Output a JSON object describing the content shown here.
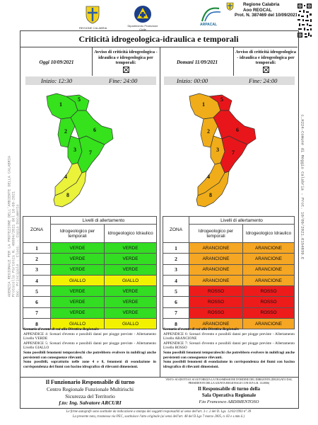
{
  "header": {
    "logos": [
      {
        "name": "regione-calabria-crest",
        "caption": "REGIONE CALABRIA"
      },
      {
        "name": "protezione-civile-logo",
        "caption": "Dipartimento Protezione Civile"
      },
      {
        "name": "arpacal-logo",
        "caption": "ARPACAL"
      }
    ],
    "stamp": [
      "Regione Calabria",
      "Aoo REGCAL",
      "Prot. N. 387469 del 10/09/2021"
    ],
    "vertical_left": [
      "AGENZIA REGIONALE PER LA PROTEZIONE DELL'AMBIENTE DELLA CALABRIA",
      "Protocollo Partenza N. 40094/2021 del 10-09-2021",
      "Doc. Principale - Class. - Copia Documento"
    ],
    "vertical_right": "c_H224-Comune di Reggio Calabria - Prot. 10/09/2021.0154839.E"
  },
  "title": "Criticità idrogeologica-idraulica e temporali",
  "panels": [
    {
      "day": "Oggi 10/09/2021",
      "avviso": "Avviso di criticità idrogeologica - idraulica e idrogeologica per temporali:",
      "inizio": "Inizio: 12:30",
      "fine": "Fine: 24:00",
      "zone_colors": [
        "#35e21c",
        "#35e21c",
        "#35e21c",
        "#eaf23a",
        "#35e21c",
        "#35e21c",
        "#35e21c",
        "#eaf23a"
      ],
      "table": {
        "group_header": "Livelli di allertamento",
        "zona_header": "ZONA",
        "col1_header": "Idrogeologico per temporali",
        "col2_header": "Idrogeologico Idraulico",
        "rows": [
          {
            "zona": "1",
            "a": "VERDE",
            "b": "VERDE",
            "ca": "#33dd22",
            "cb": "#33dd22"
          },
          {
            "zona": "2",
            "a": "VERDE",
            "b": "VERDE",
            "ca": "#33dd22",
            "cb": "#33dd22"
          },
          {
            "zona": "3",
            "a": "VERDE",
            "b": "VERDE",
            "ca": "#33dd22",
            "cb": "#33dd22"
          },
          {
            "zona": "4",
            "a": "GIALLO",
            "b": "GIALLO",
            "ca": "#f2f200",
            "cb": "#f2f200"
          },
          {
            "zona": "5",
            "a": "VERDE",
            "b": "VERDE",
            "ca": "#33dd22",
            "cb": "#33dd22"
          },
          {
            "zona": "6",
            "a": "VERDE",
            "b": "VERDE",
            "ca": "#33dd22",
            "cb": "#33dd22"
          },
          {
            "zona": "7",
            "a": "VERDE",
            "b": "VERDE",
            "ca": "#33dd22",
            "cb": "#33dd22"
          },
          {
            "zona": "8",
            "a": "GIALLO",
            "b": "GIALLO",
            "ca": "#f2f200",
            "cb": "#f2f200"
          }
        ]
      },
      "notes": {
        "heading": "Scenario d'evento di cui alla Direttiva Regionale:",
        "p1": "APPENDICE 4: Scenari d'evento e possibili danni per piogge previste - Allertamento Livello VERDE",
        "p2": "APPENDICE 5: Scenari d'evento e possibili danni per piogge previste - Allertamento Livello GIALLO",
        "p3": "Sono possibili fenomeni temporaleschi che potrebbero evolvere in nubifragi anche persistenti con conseguenze rilevanti.",
        "p4": "Sono possibili, soprattutto nelle zone 4 e 8, fenomeni di esondazione in corrispondenza dei fiumi con bacino idrografico di rilevanti dimensioni."
      }
    },
    {
      "day": "Domani 11/09/2021",
      "avviso": "Avviso di criticità idrogeologica - idraulica e idrogeologica per temporali:",
      "inizio": "Inizio: 00:00",
      "fine": "Fine: 24:00",
      "zone_colors": [
        "#f0ad19",
        "#f0ad19",
        "#f0ad19",
        "#f0ad19",
        "#e8161a",
        "#e8161a",
        "#e8161a",
        "#f0ad19"
      ],
      "table": {
        "group_header": "Livelli di allertamento",
        "zona_header": "ZONA",
        "col1_header": "Idrogeologico per temporali",
        "col2_header": "Idrogeologico Idraulico",
        "rows": [
          {
            "zona": "1",
            "a": "ARANCIONE",
            "b": "ARANCIONE",
            "ca": "#f5a623",
            "cb": "#f5a623"
          },
          {
            "zona": "2",
            "a": "ARANCIONE",
            "b": "ARANCIONE",
            "ca": "#f5a623",
            "cb": "#f5a623"
          },
          {
            "zona": "3",
            "a": "ARANCIONE",
            "b": "ARANCIONE",
            "ca": "#f5a623",
            "cb": "#f5a623"
          },
          {
            "zona": "4",
            "a": "ARANCIONE",
            "b": "ARANCIONE",
            "ca": "#f5a623",
            "cb": "#f5a623"
          },
          {
            "zona": "5",
            "a": "ROSSO",
            "b": "ROSSO",
            "ca": "#ee1b1b",
            "cb": "#ee1b1b"
          },
          {
            "zona": "6",
            "a": "ROSSO",
            "b": "ROSSO",
            "ca": "#ee1b1b",
            "cb": "#ee1b1b"
          },
          {
            "zona": "7",
            "a": "ROSSO",
            "b": "ROSSO",
            "ca": "#ee1b1b",
            "cb": "#ee1b1b"
          },
          {
            "zona": "8",
            "a": "ARANCIONE",
            "b": "ARANCIONE",
            "ca": "#f5a623",
            "cb": "#f5a623"
          }
        ]
      },
      "notes": {
        "heading": "Scenario d'evento di cui alla Direttiva Regionale:",
        "p1": "APPENDICE 6: Scenari d'evento e possibili danni per piogge previste - Allertamento Livello ARANCIONE",
        "p2": "APPENDICE 7: Scenari d'evento e possibili danni per piogge previste - Allertamento Livello ROSSO",
        "p3": "Sono possibili fenomeni temporaleschi che potrebbero evolvere in nubifragi anche persistenti con conseguenze rilevanti.",
        "p4": "Sono possibili fenomeni di esondazione in corrispondenza dei fiumi con bacino idrografico di rilevanti dimensioni."
      }
    }
  ],
  "bottom_left": {
    "l1": "Il Funzionario Responsabile di turno",
    "l2": "Centro Regionale Funzionale Multirischi",
    "l3": "Sicurezza del Territorio",
    "l4": "f.to: Ing. Salvatore ARCURI"
  },
  "bottom_right": {
    "small": "VISTO: SI ADOTTA E SI AUTORIZZA LA TRASMISSIONE D'ORDINE DEL DIRIGENTE (DELEGATO DAL PRESIDENTE DELLA GIUNTA REGIONALE CON D.P.G.R. 13/2006)",
    "l1": "Il Responsabile di turno della",
    "l2": "Sala Operativa Regionale",
    "l3": "F.to Francesco ARDIMENTOSO"
  },
  "footer": {
    "l1": "Le firme autografe sono sostituite da indicazione a stampa dei soggetti responsabili ai sensi dell'art. 3 c. 2 del D. Lgs. 12/02/1993 n° 39",
    "l2": "La presente nota, trasmessa via PEC, sostituisce l'atto originale (ai sensi dell'art. 48 del D.Lgs 7 marzo 2005, n. 82 e s.mm.ii.)"
  }
}
